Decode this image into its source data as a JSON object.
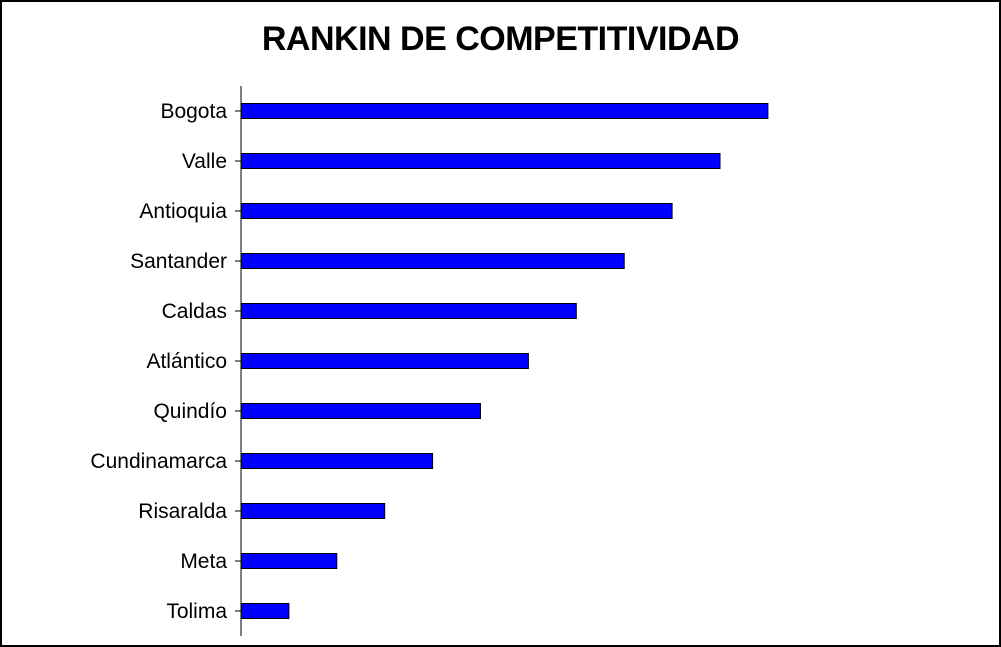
{
  "chart_data": {
    "type": "bar",
    "orientation": "horizontal",
    "title": "RANKIN DE COMPETITIVIDAD",
    "xlabel": "",
    "ylabel": "",
    "categories": [
      "Bogota",
      "Valle",
      "Antioquia",
      "Santander",
      "Caldas",
      "Atlántico",
      "Quindío",
      "Cundinamarca",
      "Risaralda",
      "Meta",
      "Tolima"
    ],
    "values": [
      11,
      10,
      9,
      8,
      7,
      6,
      5,
      4,
      3,
      2,
      1
    ],
    "xlim": [
      0,
      11
    ],
    "bar_color": "#0000FF",
    "grid": false,
    "legend": "none"
  }
}
